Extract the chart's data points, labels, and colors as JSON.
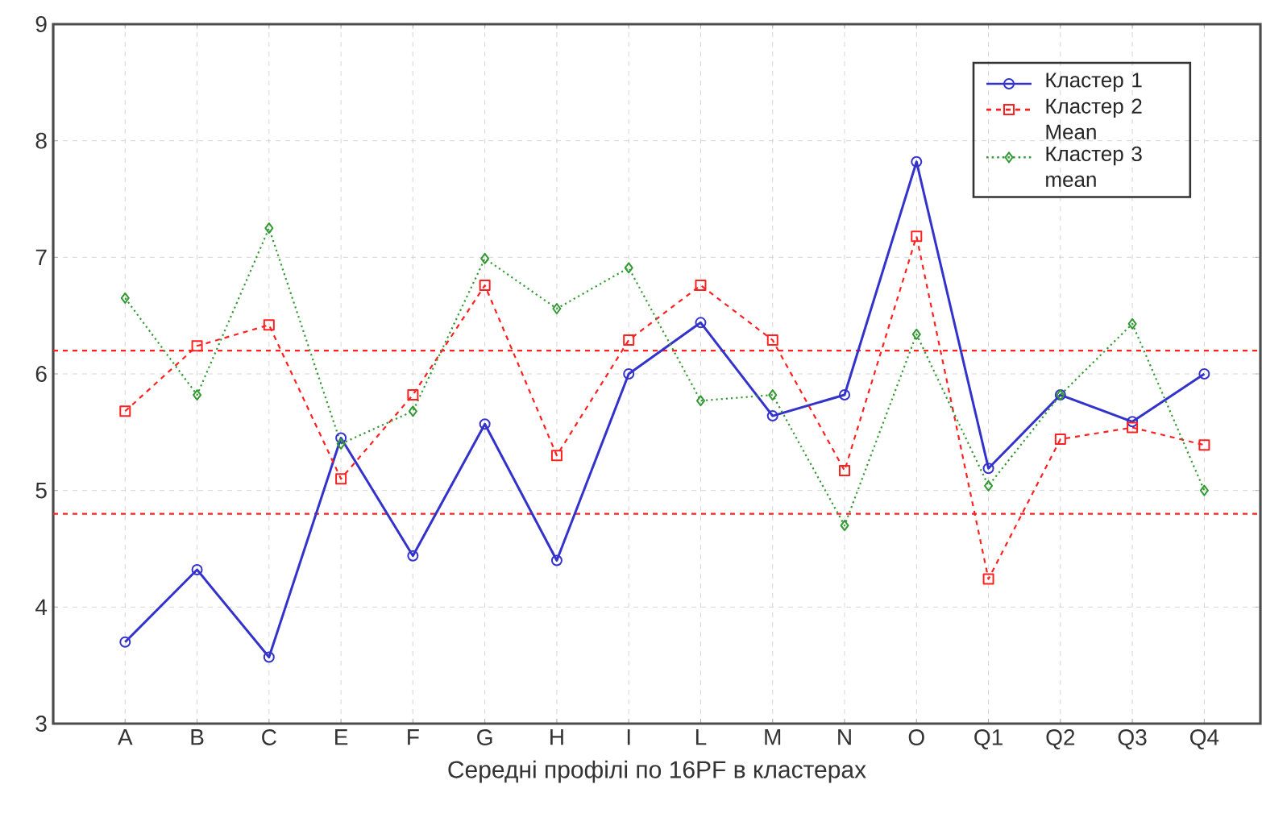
{
  "chart_data": {
    "type": "line",
    "xlabel": "Середні профілі по 16PF в кластерах",
    "categories": [
      "A",
      "B",
      "C",
      "E",
      "F",
      "G",
      "H",
      "I",
      "L",
      "M",
      "N",
      "O",
      "Q1",
      "Q2",
      "Q3",
      "Q4"
    ],
    "series": [
      {
        "name": "Кластер 1",
        "color": "#3333cc",
        "marker": "circle",
        "line_style": "solid",
        "values": [
          3.7,
          4.32,
          3.57,
          5.45,
          4.44,
          5.57,
          4.4,
          6.0,
          6.44,
          5.64,
          5.82,
          7.82,
          5.19,
          5.82,
          5.59,
          6.0
        ]
      },
      {
        "name": "Кластер 2 Mean",
        "color": "#ff2020",
        "marker": "square",
        "line_style": "dashed",
        "values": [
          5.68,
          6.24,
          6.42,
          5.1,
          5.82,
          6.76,
          5.3,
          6.29,
          6.76,
          6.29,
          5.17,
          7.18,
          4.24,
          5.44,
          5.54,
          5.39
        ]
      },
      {
        "name": "Кластер 3 mean",
        "color": "#339933",
        "marker": "diamond",
        "line_style": "dotted",
        "values": [
          6.65,
          5.82,
          7.25,
          5.4,
          5.68,
          6.99,
          6.56,
          6.91,
          5.77,
          5.82,
          4.7,
          6.34,
          5.04,
          5.82,
          6.43,
          5.0
        ]
      }
    ],
    "ylim": [
      3,
      9
    ],
    "yticks": [
      3,
      4,
      5,
      6,
      7,
      8,
      9
    ],
    "grid": true,
    "legend": "top right",
    "ref_lines": [
      {
        "axis": "y",
        "value": 6.2,
        "color": "#ff2020",
        "line_style": "dashed"
      },
      {
        "axis": "y",
        "value": 4.8,
        "color": "#ff2020",
        "line_style": "dashed"
      }
    ]
  }
}
